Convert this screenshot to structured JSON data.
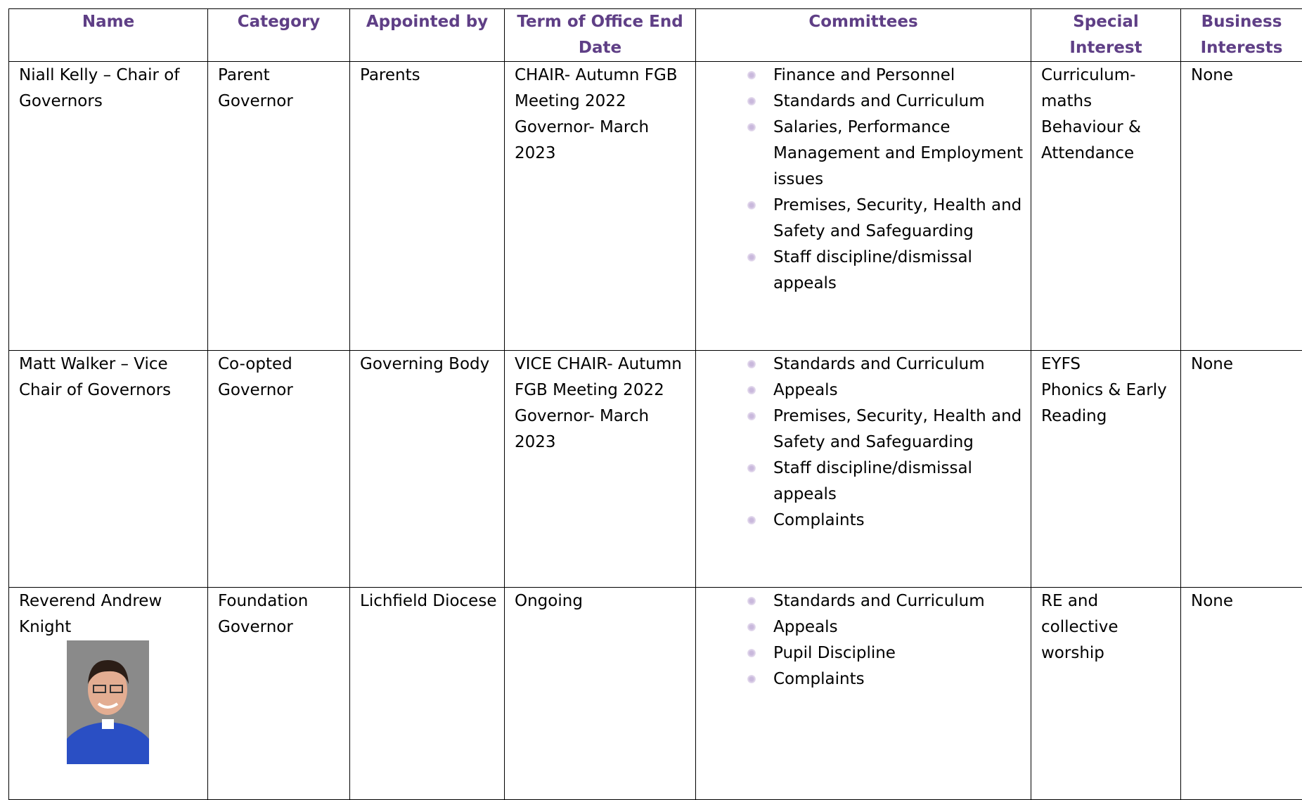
{
  "table": {
    "headers": [
      "Name",
      "Category",
      "Appointed by",
      "Term of Office End Date",
      "Committees",
      "Special Interest",
      "Business Interests"
    ],
    "rows": [
      {
        "name": "Niall Kelly – Chair of Governors",
        "category": "Parent Governor",
        "appointed_by": "Parents",
        "term": [
          "CHAIR- Autumn FGB Meeting 2022",
          "Governor- March 2023"
        ],
        "committees": [
          "Finance and Personnel",
          "Standards and Curriculum",
          "Salaries, Performance Management and Employment issues",
          "Premises, Security, Health and Safety and Safeguarding",
          "Staff discipline/dismissal appeals"
        ],
        "special_interest": [
          "Curriculum- maths",
          "Behaviour & Attendance"
        ],
        "business_interests": "None"
      },
      {
        "name": "Matt Walker – Vice Chair of Governors",
        "category": "Co-opted Governor",
        "appointed_by": "Governing Body",
        "term": [
          "VICE CHAIR- Autumn FGB Meeting 2022",
          "Governor- March 2023"
        ],
        "committees": [
          "Standards and Curriculum",
          "Appeals",
          "Premises, Security, Health and Safety and Safeguarding",
          "Staff discipline/dismissal appeals",
          "Complaints"
        ],
        "special_interest": [
          "EYFS",
          "Phonics & Early Reading"
        ],
        "business_interests": "None"
      },
      {
        "name": "Reverend Andrew Knight",
        "category": "Foundation Governor",
        "appointed_by": "Lichfield Diocese",
        "term": [
          "Ongoing"
        ],
        "committees": [
          "Standards and Curriculum",
          "Appeals",
          "Pupil Discipline",
          "Complaints"
        ],
        "special_interest": [
          "RE and collective worship"
        ],
        "business_interests": "None"
      }
    ]
  }
}
